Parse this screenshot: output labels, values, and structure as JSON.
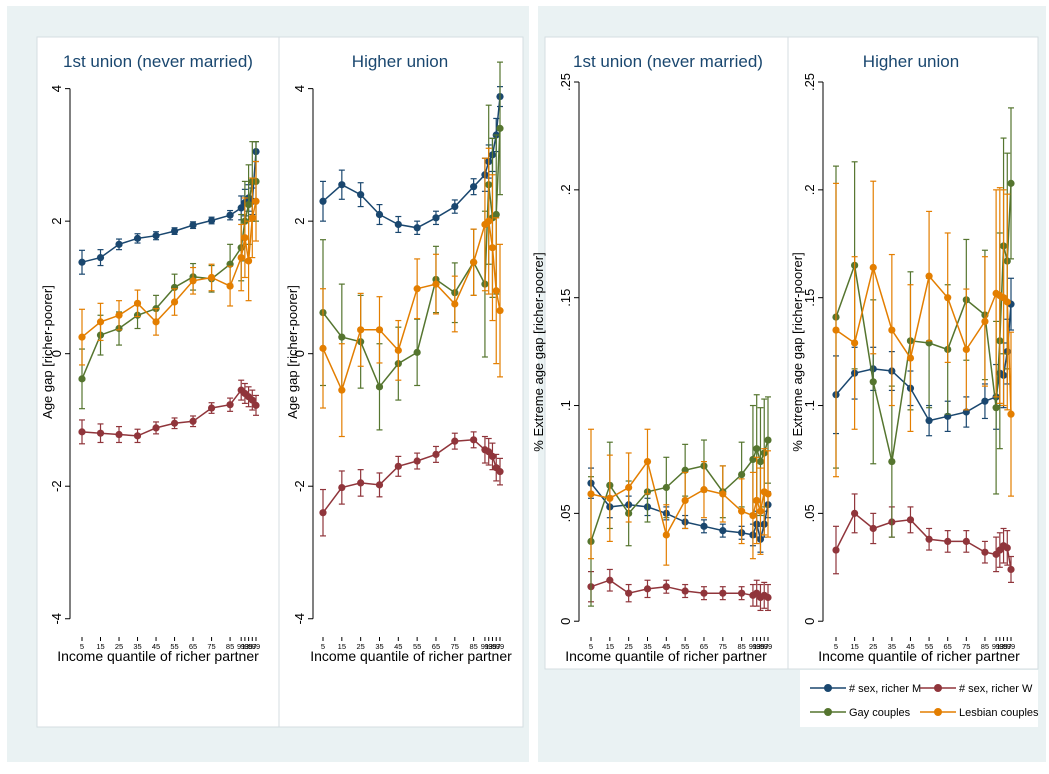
{
  "colors": {
    "frame_bg": "#eaf2f3",
    "panel_bg": "#ffffff",
    "border": "#d4dee2",
    "title": "#1a476f",
    "text": "#000000"
  },
  "chart_data": [
    {
      "type": "line",
      "panel_group": "left",
      "title": "1st union (never married)",
      "ylabel": "Age gap [richer-poorer]",
      "xlabel": "Income quantile of richer partner",
      "ylim": [
        -4.2,
        4.1
      ],
      "yticks": [
        -4,
        -2,
        0,
        2,
        4
      ],
      "ytick_labels": [
        "-4",
        "-2",
        "0",
        "2",
        "4"
      ],
      "x": [
        5,
        15,
        25,
        35,
        45,
        55,
        65,
        75,
        85,
        91,
        93,
        95,
        97,
        99
      ],
      "xtick_labels": [
        "5",
        "15",
        "25",
        "35",
        "45",
        "55",
        "65",
        "75",
        "85",
        "91",
        "93",
        "95",
        "97",
        "99"
      ],
      "grid": false,
      "series": [
        {
          "name": "# sex, richer M",
          "color": "#1a476f",
          "values": [
            1.38,
            1.45,
            1.65,
            1.74,
            1.78,
            1.85,
            1.94,
            2.01,
            2.09,
            2.2,
            2.28,
            2.35,
            2.3,
            3.05
          ],
          "err": [
            0.18,
            0.12,
            0.08,
            0.07,
            0.06,
            0.05,
            0.05,
            0.05,
            0.07,
            0.18,
            0.2,
            0.2,
            0.2,
            0.15
          ]
        },
        {
          "name": "# sex, richer W",
          "color": "#90353b",
          "values": [
            -1.18,
            -1.2,
            -1.22,
            -1.24,
            -1.12,
            -1.05,
            -1.02,
            -0.82,
            -0.77,
            -0.55,
            -0.6,
            -0.65,
            -0.7,
            -0.78
          ],
          "err": [
            0.18,
            0.14,
            0.12,
            0.1,
            0.09,
            0.08,
            0.08,
            0.08,
            0.1,
            0.15,
            0.15,
            0.15,
            0.15,
            0.15
          ]
        },
        {
          "name": "Gay couples",
          "color": "#55752f",
          "values": [
            -0.38,
            0.28,
            0.38,
            0.58,
            0.68,
            1.0,
            1.16,
            1.13,
            1.35,
            1.6,
            2.0,
            2.25,
            2.6,
            2.6
          ],
          "err": [
            0.45,
            0.3,
            0.25,
            0.2,
            0.2,
            0.2,
            0.2,
            0.2,
            0.3,
            0.5,
            0.6,
            0.6,
            0.6,
            0.6
          ]
        },
        {
          "name": "Lesbian couples",
          "color": "#e37e00",
          "values": [
            0.25,
            0.48,
            0.58,
            0.76,
            0.48,
            0.78,
            1.1,
            1.15,
            1.02,
            1.45,
            1.75,
            1.4,
            2.05,
            2.3
          ],
          "err": [
            0.42,
            0.28,
            0.22,
            0.2,
            0.2,
            0.2,
            0.2,
            0.2,
            0.3,
            0.5,
            0.6,
            0.6,
            0.6,
            0.6
          ]
        }
      ]
    },
    {
      "type": "line",
      "panel_group": "left",
      "title": "Higher union",
      "ylabel": "Age gap [richer-poorer]",
      "xlabel": "Income quantile of richer partner",
      "ylim": [
        -4.2,
        4.1
      ],
      "yticks": [
        -4,
        -2,
        0,
        2,
        4
      ],
      "ytick_labels": [
        "-4",
        "-2",
        "0",
        "2",
        "4"
      ],
      "x": [
        5,
        15,
        25,
        35,
        45,
        55,
        65,
        75,
        85,
        91,
        93,
        95,
        97,
        99
      ],
      "xtick_labels": [
        "5",
        "15",
        "25",
        "35",
        "45",
        "55",
        "65",
        "75",
        "85",
        "91",
        "93",
        "95",
        "97",
        "99"
      ],
      "grid": false,
      "series": [
        {
          "name": "# sex, richer M",
          "color": "#1a476f",
          "values": [
            2.3,
            2.55,
            2.4,
            2.1,
            1.95,
            1.9,
            2.05,
            2.22,
            2.52,
            2.7,
            2.9,
            3.0,
            3.3,
            3.88
          ],
          "err": [
            0.3,
            0.22,
            0.18,
            0.15,
            0.12,
            0.1,
            0.1,
            0.1,
            0.12,
            0.25,
            0.25,
            0.25,
            0.25,
            0.15
          ]
        },
        {
          "name": "# sex, richer W",
          "color": "#90353b",
          "values": [
            -2.4,
            -2.02,
            -1.95,
            -1.98,
            -1.7,
            -1.62,
            -1.52,
            -1.32,
            -1.3,
            -1.45,
            -1.48,
            -1.55,
            -1.72,
            -1.78
          ],
          "err": [
            0.35,
            0.25,
            0.2,
            0.18,
            0.15,
            0.12,
            0.12,
            0.12,
            0.12,
            0.2,
            0.2,
            0.2,
            0.2,
            0.2
          ]
        },
        {
          "name": "Gay couples",
          "color": "#55752f",
          "values": [
            0.62,
            0.25,
            0.18,
            -0.5,
            -0.15,
            0.02,
            1.12,
            0.92,
            1.38,
            1.05,
            2.55,
            2.05,
            2.1,
            3.4
          ],
          "err": [
            1.1,
            0.8,
            0.7,
            0.65,
            0.55,
            0.5,
            0.5,
            0.45,
            0.5,
            1.1,
            1.2,
            1.2,
            1.2,
            1.0
          ]
        },
        {
          "name": "Lesbian couples",
          "color": "#e37e00",
          "values": [
            0.08,
            -0.55,
            0.36,
            0.36,
            0.05,
            0.98,
            1.05,
            0.75,
            1.38,
            1.95,
            2.0,
            1.6,
            0.95,
            0.65
          ],
          "err": [
            0.9,
            0.7,
            0.55,
            0.5,
            0.45,
            0.45,
            0.45,
            0.42,
            0.5,
            1.0,
            1.1,
            1.1,
            1.1,
            1.0
          ]
        }
      ]
    },
    {
      "type": "line",
      "panel_group": "right",
      "title": "1st union (never married)",
      "ylabel": "% Extreme age gap [richer-poorer]",
      "xlabel": "Income quantile of richer partner",
      "ylim": [
        -0.005,
        0.25
      ],
      "yticks": [
        0,
        0.05,
        0.1,
        0.15,
        0.2,
        0.25
      ],
      "ytick_labels": [
        "0",
        ".05",
        ".1",
        ".15",
        ".2",
        ".25"
      ],
      "x": [
        5,
        15,
        25,
        35,
        45,
        55,
        65,
        75,
        85,
        91,
        93,
        95,
        97,
        99
      ],
      "xtick_labels": [
        "5",
        "15",
        "25",
        "35",
        "45",
        "55",
        "65",
        "75",
        "85",
        "91",
        "93",
        "95",
        "97",
        "99"
      ],
      "grid": false,
      "series": [
        {
          "name": "# sex, richer M",
          "color": "#1a476f",
          "values": [
            0.064,
            0.053,
            0.054,
            0.053,
            0.05,
            0.046,
            0.044,
            0.042,
            0.041,
            0.04,
            0.045,
            0.038,
            0.045,
            0.054
          ],
          "err": [
            0.007,
            0.005,
            0.004,
            0.004,
            0.003,
            0.003,
            0.003,
            0.003,
            0.003,
            0.005,
            0.006,
            0.006,
            0.006,
            0.006
          ]
        },
        {
          "name": "# sex, richer W",
          "color": "#90353b",
          "values": [
            0.016,
            0.019,
            0.013,
            0.015,
            0.016,
            0.014,
            0.013,
            0.013,
            0.013,
            0.012,
            0.013,
            0.011,
            0.012,
            0.011
          ],
          "err": [
            0.007,
            0.005,
            0.004,
            0.004,
            0.003,
            0.003,
            0.003,
            0.003,
            0.003,
            0.005,
            0.006,
            0.006,
            0.006,
            0.006
          ]
        },
        {
          "name": "Gay couples",
          "color": "#55752f",
          "values": [
            0.037,
            0.063,
            0.05,
            0.06,
            0.062,
            0.07,
            0.072,
            0.06,
            0.068,
            0.075,
            0.08,
            0.074,
            0.078,
            0.084
          ],
          "err": [
            0.03,
            0.02,
            0.015,
            0.014,
            0.014,
            0.012,
            0.012,
            0.012,
            0.015,
            0.025,
            0.025,
            0.025,
            0.025,
            0.02
          ]
        },
        {
          "name": "Lesbian couples",
          "color": "#e37e00",
          "values": [
            0.059,
            0.057,
            0.062,
            0.074,
            0.04,
            0.056,
            0.061,
            0.059,
            0.051,
            0.049,
            0.056,
            0.051,
            0.06,
            0.059
          ],
          "err": [
            0.03,
            0.02,
            0.016,
            0.015,
            0.014,
            0.013,
            0.013,
            0.013,
            0.015,
            0.02,
            0.02,
            0.02,
            0.02,
            0.02
          ]
        }
      ]
    },
    {
      "type": "line",
      "panel_group": "right",
      "title": "Higher union",
      "ylabel": "% Extreme age gap [richer-poorer]",
      "xlabel": "Income quantile of richer partner",
      "ylim": [
        -0.005,
        0.25
      ],
      "yticks": [
        0,
        0.05,
        0.1,
        0.15,
        0.2,
        0.25
      ],
      "ytick_labels": [
        "0",
        ".05",
        ".1",
        ".15",
        ".2",
        ".25"
      ],
      "x": [
        5,
        15,
        25,
        35,
        45,
        55,
        65,
        75,
        85,
        91,
        93,
        95,
        97,
        99
      ],
      "xtick_labels": [
        "5",
        "15",
        "25",
        "35",
        "45",
        "55",
        "65",
        "75",
        "85",
        "91",
        "93",
        "95",
        "97",
        "99"
      ],
      "grid": false,
      "series": [
        {
          "name": "# sex, richer M",
          "color": "#1a476f",
          "values": [
            0.105,
            0.115,
            0.117,
            0.116,
            0.108,
            0.093,
            0.095,
            0.097,
            0.102,
            0.104,
            0.115,
            0.114,
            0.125,
            0.147
          ],
          "err": [
            0.018,
            0.012,
            0.01,
            0.009,
            0.008,
            0.007,
            0.007,
            0.007,
            0.008,
            0.015,
            0.015,
            0.015,
            0.015,
            0.012
          ]
        },
        {
          "name": "# sex, richer W",
          "color": "#90353b",
          "values": [
            0.033,
            0.05,
            0.043,
            0.046,
            0.047,
            0.038,
            0.037,
            0.037,
            0.032,
            0.031,
            0.033,
            0.035,
            0.034,
            0.024
          ],
          "err": [
            0.011,
            0.009,
            0.007,
            0.007,
            0.006,
            0.005,
            0.005,
            0.005,
            0.005,
            0.008,
            0.008,
            0.008,
            0.008,
            0.006
          ]
        },
        {
          "name": "Gay couples",
          "color": "#55752f",
          "values": [
            0.141,
            0.165,
            0.111,
            0.074,
            0.13,
            0.129,
            0.126,
            0.149,
            0.142,
            0.099,
            0.13,
            0.174,
            0.167,
            0.203
          ],
          "err": [
            0.07,
            0.048,
            0.038,
            0.035,
            0.032,
            0.03,
            0.03,
            0.028,
            0.03,
            0.04,
            0.05,
            0.05,
            0.05,
            0.035
          ]
        },
        {
          "name": "Lesbian couples",
          "color": "#e37e00",
          "values": [
            0.135,
            0.129,
            0.164,
            0.135,
            0.122,
            0.16,
            0.15,
            0.126,
            0.139,
            0.152,
            0.151,
            0.15,
            0.148,
            0.096
          ],
          "err": [
            0.068,
            0.04,
            0.04,
            0.035,
            0.034,
            0.03,
            0.03,
            0.028,
            0.03,
            0.048,
            0.05,
            0.05,
            0.05,
            0.038
          ]
        }
      ]
    }
  ],
  "legend": {
    "placement": "bottom-right",
    "items": [
      {
        "label": "# sex, richer M",
        "color": "#1a476f"
      },
      {
        "label": "# sex, richer W",
        "color": "#90353b"
      },
      {
        "label": "Gay couples",
        "color": "#55752f"
      },
      {
        "label": "Lesbian couples",
        "color": "#e37e00"
      }
    ]
  }
}
